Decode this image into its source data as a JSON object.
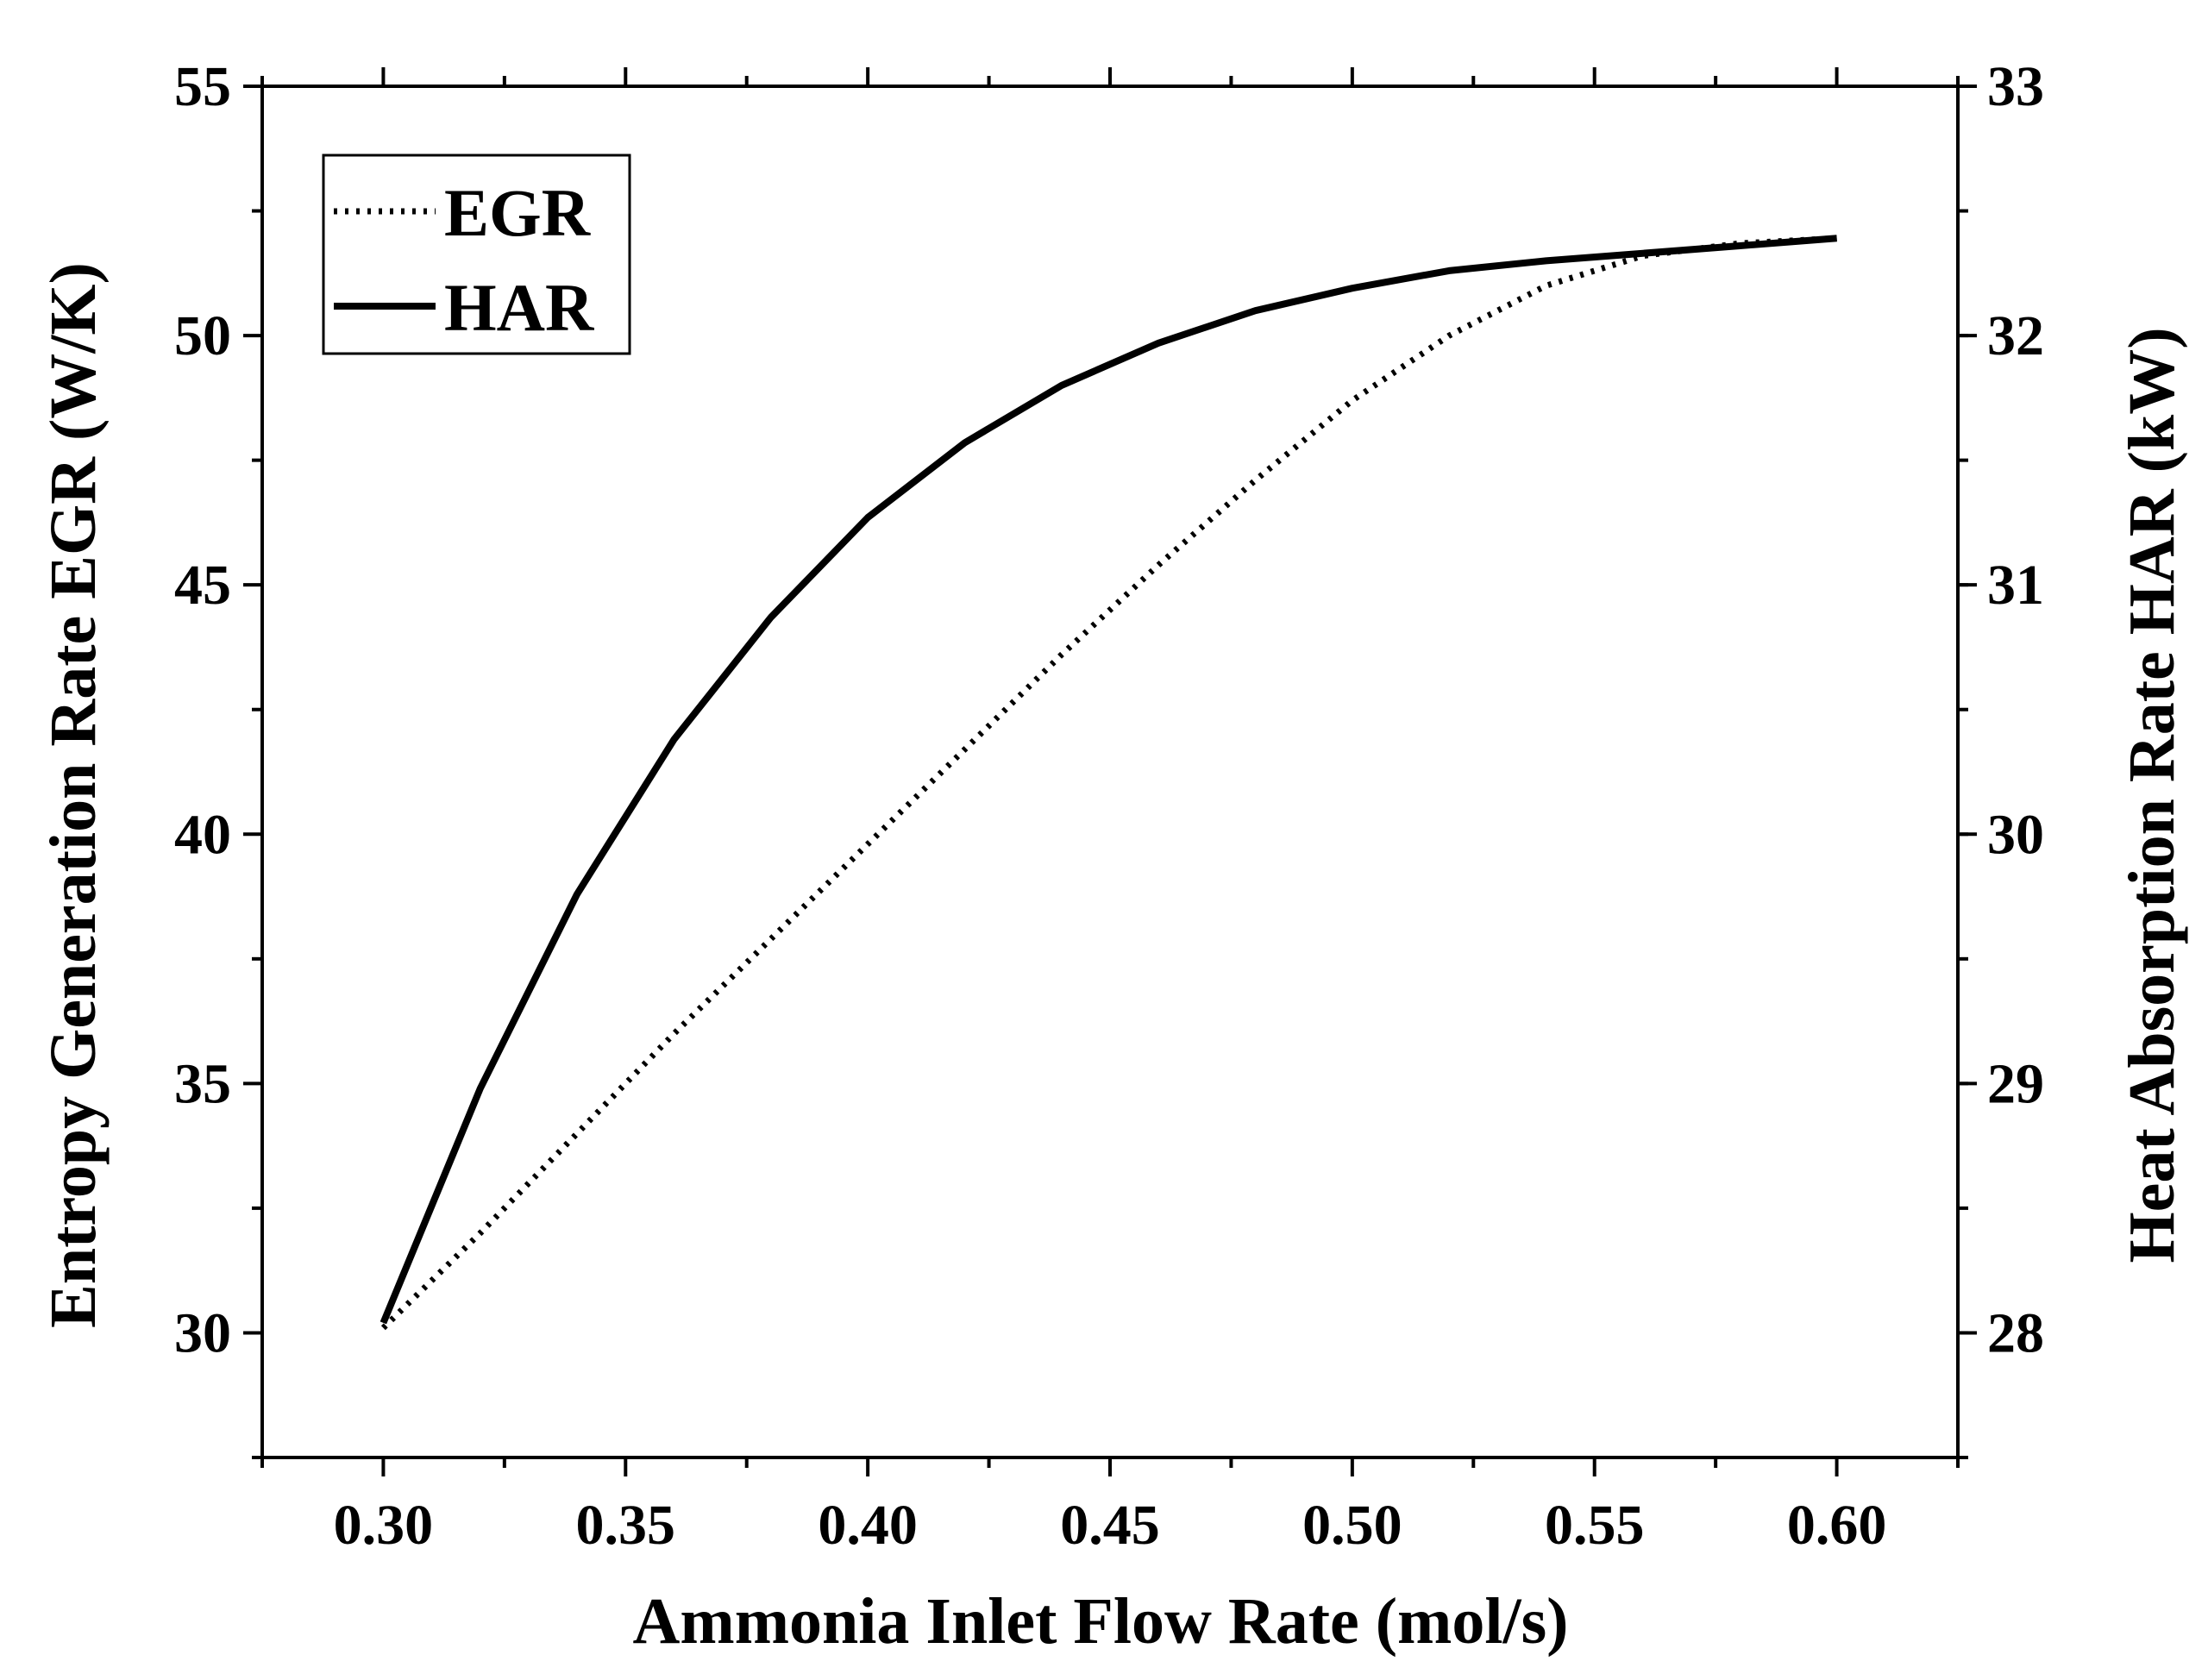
{
  "chart_data": {
    "type": "line",
    "title": "",
    "xlabel": "Ammonia Inlet Flow Rate (mol/s)",
    "ylabel_left": "Entropy Generation Rate EGR (W/K)",
    "ylabel_right": "Heat Absorption Rate HAR (kW)",
    "xlim": [
      0.275,
      0.625
    ],
    "ylim_left": [
      27.5,
      55
    ],
    "ylim_right": [
      27.5,
      33
    ],
    "x_ticks": [
      0.3,
      0.35,
      0.4,
      0.45,
      0.5,
      0.55,
      0.6
    ],
    "x_tick_labels": [
      "0.30",
      "0.35",
      "0.40",
      "0.45",
      "0.50",
      "0.55",
      "0.60"
    ],
    "y_left_ticks": [
      30,
      35,
      40,
      45,
      50,
      55
    ],
    "y_left_tick_labels": [
      "30",
      "35",
      "40",
      "45",
      "50",
      "55"
    ],
    "y_right_ticks": [
      28,
      29,
      30,
      31,
      32,
      33
    ],
    "y_right_tick_labels": [
      "28",
      "29",
      "30",
      "31",
      "32",
      "33"
    ],
    "legend_position": "top-left",
    "grid": false,
    "series": [
      {
        "name": "EGR",
        "axis": "left",
        "style": "dotted",
        "x": [
          0.3,
          0.32,
          0.34,
          0.36,
          0.38,
          0.4,
          0.42,
          0.44,
          0.46,
          0.48,
          0.5,
          0.52,
          0.54,
          0.56,
          0.58,
          0.6
        ],
        "values": [
          30.1,
          32.0,
          34.0,
          36.0,
          37.9,
          39.8,
          41.7,
          43.6,
          45.4,
          47.1,
          48.7,
          50.0,
          51.0,
          51.6,
          51.85,
          51.95
        ]
      },
      {
        "name": "HAR",
        "axis": "right",
        "style": "solid",
        "x": [
          0.3,
          0.32,
          0.34,
          0.36,
          0.38,
          0.4,
          0.42,
          0.44,
          0.46,
          0.48,
          0.5,
          0.52,
          0.54,
          0.56,
          0.58,
          0.6
        ],
        "values": [
          28.04,
          28.98,
          29.76,
          30.38,
          30.87,
          31.27,
          31.57,
          31.8,
          31.97,
          32.1,
          32.19,
          32.26,
          32.3,
          32.33,
          32.36,
          32.39
        ]
      }
    ],
    "colors": {
      "line": "#000000",
      "frame": "#000000",
      "background": "#ffffff"
    }
  }
}
